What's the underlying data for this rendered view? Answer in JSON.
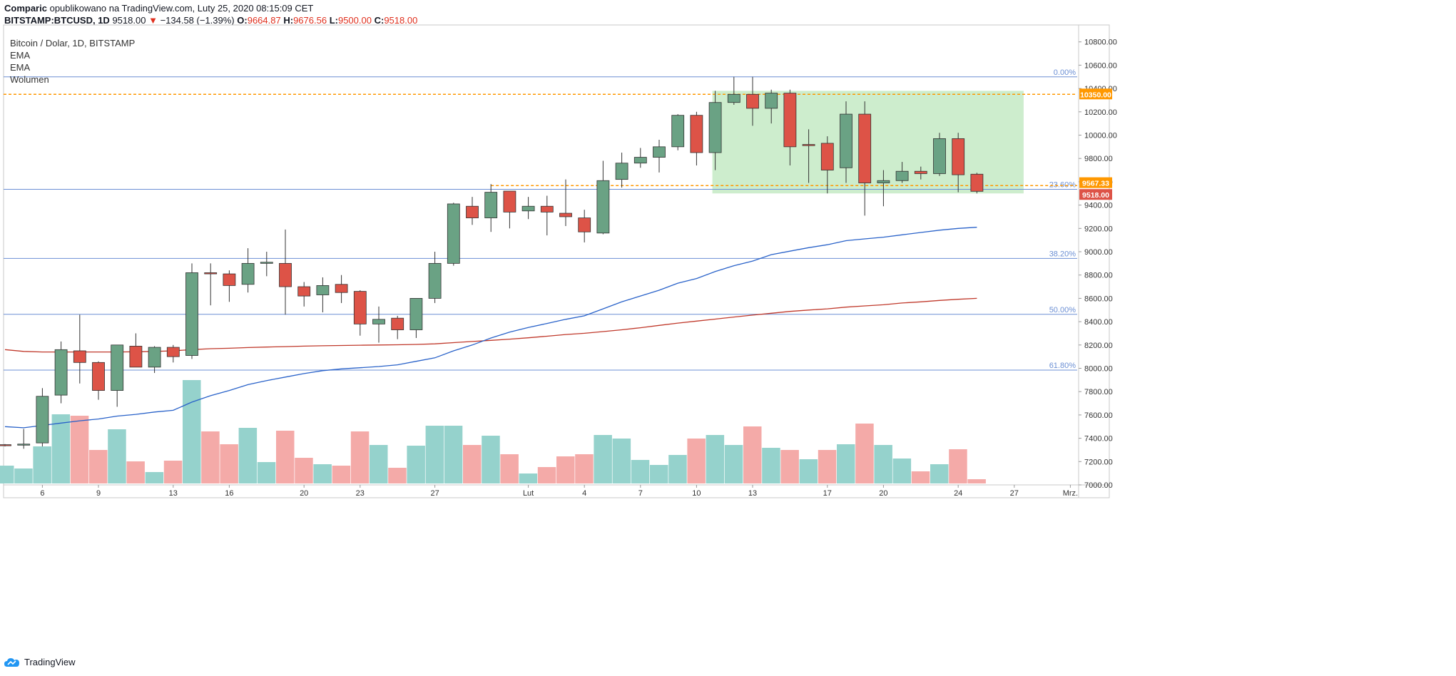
{
  "header": {
    "author": "Comparic",
    "published": "opublikowano na TradingView.com, Luty 25, 2020 08:15:09 CET",
    "symbol": "BITSTAMP:BTCUSD, 1D",
    "last": "9518.00",
    "change": "−134.58 (−1.39%)",
    "o_label": "O:",
    "o": "9664.87",
    "h_label": "H:",
    "h": "9676.56",
    "l_label": "L:",
    "l": "9500.00",
    "c_label": "C:",
    "c": "9518.00"
  },
  "legend": {
    "title": "Bitcoin / Dolar, 1D, BITSTAMP",
    "items": [
      "EMA",
      "EMA",
      "Wolumen"
    ]
  },
  "footer": {
    "brand": "TradingView"
  },
  "chart_data": {
    "type": "candlestick",
    "title": "Bitcoin / Dolar, 1D, BITSTAMP",
    "colors": {
      "up": "#6aa284",
      "down": "#dd5347",
      "vol_up": "#95d2cc",
      "vol_down": "#f4aaa8",
      "ema_short": "#2962c9",
      "ema_long": "#c0392b",
      "fib": "#6b8fd4",
      "orange": "#ff9800",
      "box": "#c8ebc8"
    },
    "ylim": [
      6900,
      10900
    ],
    "yticks": [
      7000,
      7200,
      7400,
      7600,
      7800,
      8000,
      8200,
      8400,
      8600,
      8800,
      9000,
      9200,
      9400,
      9600,
      9800,
      10000,
      10200,
      10400,
      10600,
      10800
    ],
    "ytick_labels": [
      "7000.00",
      "7200.00",
      "7400.00",
      "7600.00",
      "7800.00",
      "8000.00",
      "8200.00",
      "8400.00",
      "8600.00",
      "8800.00",
      "9000.00",
      "9200.00",
      "9400.00",
      "9600.00",
      "9800.00",
      "10000.00",
      "10200.00",
      "10400.00",
      "10600.00",
      "10800.00"
    ],
    "xticks": [
      {
        "index": 2,
        "label": "6"
      },
      {
        "index": 5,
        "label": "9"
      },
      {
        "index": 9,
        "label": "13"
      },
      {
        "index": 12,
        "label": "16"
      },
      {
        "index": 16,
        "label": "20"
      },
      {
        "index": 19,
        "label": "23"
      },
      {
        "index": 23,
        "label": "27"
      },
      {
        "index": 28,
        "label": "Lut"
      },
      {
        "index": 31,
        "label": "4"
      },
      {
        "index": 34,
        "label": "7"
      },
      {
        "index": 37,
        "label": "10"
      },
      {
        "index": 40,
        "label": "13"
      },
      {
        "index": 44,
        "label": "17"
      },
      {
        "index": 47,
        "label": "20"
      },
      {
        "index": 51,
        "label": "24"
      },
      {
        "index": 54,
        "label": "27"
      },
      {
        "index": 57,
        "label": "Mrz."
      }
    ],
    "candles": [
      {
        "o": 7345,
        "h": 7350,
        "l": 7330,
        "c": 7340
      },
      {
        "o": 7350,
        "h": 7480,
        "l": 7310,
        "c": 7350
      },
      {
        "o": 7360,
        "h": 7830,
        "l": 7330,
        "c": 7760
      },
      {
        "o": 7770,
        "h": 8230,
        "l": 7700,
        "c": 8160
      },
      {
        "o": 8150,
        "h": 8460,
        "l": 7870,
        "c": 8050
      },
      {
        "o": 8050,
        "h": 8060,
        "l": 7730,
        "c": 7810
      },
      {
        "o": 7810,
        "h": 8200,
        "l": 7670,
        "c": 8200
      },
      {
        "o": 8190,
        "h": 8300,
        "l": 8010,
        "c": 8010
      },
      {
        "o": 8010,
        "h": 8190,
        "l": 7960,
        "c": 8180
      },
      {
        "o": 8180,
        "h": 8200,
        "l": 8050,
        "c": 8100
      },
      {
        "o": 8110,
        "h": 8900,
        "l": 8080,
        "c": 8820
      },
      {
        "o": 8820,
        "h": 8900,
        "l": 8540,
        "c": 8810
      },
      {
        "o": 8810,
        "h": 8840,
        "l": 8570,
        "c": 8710
      },
      {
        "o": 8720,
        "h": 9030,
        "l": 8650,
        "c": 8900
      },
      {
        "o": 8900,
        "h": 9000,
        "l": 8790,
        "c": 8910
      },
      {
        "o": 8900,
        "h": 9190,
        "l": 8460,
        "c": 8700
      },
      {
        "o": 8700,
        "h": 8740,
        "l": 8530,
        "c": 8620
      },
      {
        "o": 8630,
        "h": 8780,
        "l": 8480,
        "c": 8710
      },
      {
        "o": 8720,
        "h": 8800,
        "l": 8560,
        "c": 8650
      },
      {
        "o": 8660,
        "h": 8670,
        "l": 8280,
        "c": 8380
      },
      {
        "o": 8380,
        "h": 8530,
        "l": 8220,
        "c": 8420
      },
      {
        "o": 8430,
        "h": 8450,
        "l": 8250,
        "c": 8330
      },
      {
        "o": 8330,
        "h": 8590,
        "l": 8260,
        "c": 8600
      },
      {
        "o": 8600,
        "h": 9000,
        "l": 8560,
        "c": 8900
      },
      {
        "o": 8900,
        "h": 9420,
        "l": 8880,
        "c": 9410
      },
      {
        "o": 9390,
        "h": 9470,
        "l": 9230,
        "c": 9290
      },
      {
        "o": 9290,
        "h": 9580,
        "l": 9170,
        "c": 9510
      },
      {
        "o": 9520,
        "h": 9520,
        "l": 9200,
        "c": 9340
      },
      {
        "o": 9350,
        "h": 9470,
        "l": 9280,
        "c": 9390
      },
      {
        "o": 9390,
        "h": 9480,
        "l": 9140,
        "c": 9340
      },
      {
        "o": 9330,
        "h": 9620,
        "l": 9220,
        "c": 9300
      },
      {
        "o": 9290,
        "h": 9360,
        "l": 9080,
        "c": 9170
      },
      {
        "o": 9160,
        "h": 9780,
        "l": 9150,
        "c": 9610
      },
      {
        "o": 9620,
        "h": 9850,
        "l": 9550,
        "c": 9760
      },
      {
        "o": 9760,
        "h": 9890,
        "l": 9720,
        "c": 9810
      },
      {
        "o": 9810,
        "h": 9960,
        "l": 9680,
        "c": 9900
      },
      {
        "o": 9900,
        "h": 10180,
        "l": 9870,
        "c": 10170
      },
      {
        "o": 10170,
        "h": 10200,
        "l": 9740,
        "c": 9850
      },
      {
        "o": 9850,
        "h": 10380,
        "l": 9700,
        "c": 10280
      },
      {
        "o": 10280,
        "h": 10500,
        "l": 10260,
        "c": 10350
      },
      {
        "o": 10350,
        "h": 10500,
        "l": 10080,
        "c": 10230
      },
      {
        "o": 10230,
        "h": 10390,
        "l": 10100,
        "c": 10360
      },
      {
        "o": 10360,
        "h": 10390,
        "l": 9740,
        "c": 9900
      },
      {
        "o": 9920,
        "h": 10050,
        "l": 9590,
        "c": 9910
      },
      {
        "o": 9930,
        "h": 9990,
        "l": 9500,
        "c": 9700
      },
      {
        "o": 9720,
        "h": 10290,
        "l": 9590,
        "c": 10180
      },
      {
        "o": 10180,
        "h": 10290,
        "l": 9310,
        "c": 9590
      },
      {
        "o": 9590,
        "h": 9700,
        "l": 9390,
        "c": 9610
      },
      {
        "o": 9610,
        "h": 9770,
        "l": 9590,
        "c": 9690
      },
      {
        "o": 9690,
        "h": 9730,
        "l": 9620,
        "c": 9670
      },
      {
        "o": 9670,
        "h": 10020,
        "l": 9650,
        "c": 9970
      },
      {
        "o": 9970,
        "h": 10020,
        "l": 9510,
        "c": 9660
      },
      {
        "o": 9665,
        "h": 9677,
        "l": 9500,
        "c": 9518
      }
    ],
    "volume": [
      {
        "v": 0.25,
        "up": true
      },
      {
        "v": 0.21,
        "up": true
      },
      {
        "v": 0.52,
        "up": true
      },
      {
        "v": 0.97,
        "up": true
      },
      {
        "v": 0.95,
        "up": false
      },
      {
        "v": 0.47,
        "up": false
      },
      {
        "v": 0.76,
        "up": true
      },
      {
        "v": 0.31,
        "up": false
      },
      {
        "v": 0.16,
        "up": true
      },
      {
        "v": 0.32,
        "up": false
      },
      {
        "v": 1.45,
        "up": true
      },
      {
        "v": 0.73,
        "up": false
      },
      {
        "v": 0.55,
        "up": false
      },
      {
        "v": 0.78,
        "up": true
      },
      {
        "v": 0.3,
        "up": true
      },
      {
        "v": 0.74,
        "up": false
      },
      {
        "v": 0.36,
        "up": false
      },
      {
        "v": 0.27,
        "up": true
      },
      {
        "v": 0.25,
        "up": false
      },
      {
        "v": 0.73,
        "up": false
      },
      {
        "v": 0.54,
        "up": true
      },
      {
        "v": 0.22,
        "up": false
      },
      {
        "v": 0.53,
        "up": true
      },
      {
        "v": 0.81,
        "up": true
      },
      {
        "v": 0.81,
        "up": true
      },
      {
        "v": 0.54,
        "up": false
      },
      {
        "v": 0.67,
        "up": true
      },
      {
        "v": 0.41,
        "up": false
      },
      {
        "v": 0.14,
        "up": true
      },
      {
        "v": 0.23,
        "up": false
      },
      {
        "v": 0.38,
        "up": false
      },
      {
        "v": 0.41,
        "up": false
      },
      {
        "v": 0.68,
        "up": true
      },
      {
        "v": 0.63,
        "up": true
      },
      {
        "v": 0.33,
        "up": true
      },
      {
        "v": 0.26,
        "up": true
      },
      {
        "v": 0.4,
        "up": true
      },
      {
        "v": 0.63,
        "up": false
      },
      {
        "v": 0.68,
        "up": true
      },
      {
        "v": 0.54,
        "up": true
      },
      {
        "v": 0.8,
        "up": false
      },
      {
        "v": 0.5,
        "up": true
      },
      {
        "v": 0.47,
        "up": false
      },
      {
        "v": 0.34,
        "up": true
      },
      {
        "v": 0.47,
        "up": false
      },
      {
        "v": 0.55,
        "up": true
      },
      {
        "v": 0.84,
        "up": false
      },
      {
        "v": 0.54,
        "up": true
      },
      {
        "v": 0.35,
        "up": true
      },
      {
        "v": 0.17,
        "up": false
      },
      {
        "v": 0.27,
        "up": true
      },
      {
        "v": 0.48,
        "up": false
      },
      {
        "v": 0.06,
        "up": false
      }
    ],
    "ema_short": [
      {
        "i": 0,
        "y": 7500
      },
      {
        "i": 1,
        "y": 7490
      },
      {
        "i": 2,
        "y": 7510
      },
      {
        "i": 3,
        "y": 7530
      },
      {
        "i": 4,
        "y": 7550
      },
      {
        "i": 5,
        "y": 7565
      },
      {
        "i": 6,
        "y": 7590
      },
      {
        "i": 7,
        "y": 7605
      },
      {
        "i": 8,
        "y": 7625
      },
      {
        "i": 9,
        "y": 7640
      },
      {
        "i": 10,
        "y": 7710
      },
      {
        "i": 11,
        "y": 7765
      },
      {
        "i": 12,
        "y": 7810
      },
      {
        "i": 13,
        "y": 7860
      },
      {
        "i": 14,
        "y": 7895
      },
      {
        "i": 15,
        "y": 7925
      },
      {
        "i": 16,
        "y": 7955
      },
      {
        "i": 17,
        "y": 7980
      },
      {
        "i": 18,
        "y": 7995
      },
      {
        "i": 19,
        "y": 8005
      },
      {
        "i": 20,
        "y": 8015
      },
      {
        "i": 21,
        "y": 8030
      },
      {
        "i": 22,
        "y": 8060
      },
      {
        "i": 23,
        "y": 8090
      },
      {
        "i": 24,
        "y": 8150
      },
      {
        "i": 25,
        "y": 8200
      },
      {
        "i": 26,
        "y": 8260
      },
      {
        "i": 27,
        "y": 8310
      },
      {
        "i": 28,
        "y": 8350
      },
      {
        "i": 29,
        "y": 8385
      },
      {
        "i": 30,
        "y": 8420
      },
      {
        "i": 31,
        "y": 8450
      },
      {
        "i": 32,
        "y": 8510
      },
      {
        "i": 33,
        "y": 8570
      },
      {
        "i": 34,
        "y": 8620
      },
      {
        "i": 35,
        "y": 8670
      },
      {
        "i": 36,
        "y": 8730
      },
      {
        "i": 37,
        "y": 8770
      },
      {
        "i": 38,
        "y": 8830
      },
      {
        "i": 39,
        "y": 8880
      },
      {
        "i": 40,
        "y": 8920
      },
      {
        "i": 41,
        "y": 8975
      },
      {
        "i": 42,
        "y": 9005
      },
      {
        "i": 43,
        "y": 9035
      },
      {
        "i": 44,
        "y": 9060
      },
      {
        "i": 45,
        "y": 9095
      },
      {
        "i": 46,
        "y": 9110
      },
      {
        "i": 47,
        "y": 9125
      },
      {
        "i": 48,
        "y": 9145
      },
      {
        "i": 49,
        "y": 9165
      },
      {
        "i": 50,
        "y": 9185
      },
      {
        "i": 51,
        "y": 9200
      },
      {
        "i": 52,
        "y": 9210
      }
    ],
    "ema_long": [
      {
        "i": 0,
        "y": 8160
      },
      {
        "i": 1,
        "y": 8145
      },
      {
        "i": 2,
        "y": 8140
      },
      {
        "i": 3,
        "y": 8140
      },
      {
        "i": 4,
        "y": 8140
      },
      {
        "i": 5,
        "y": 8140
      },
      {
        "i": 6,
        "y": 8140
      },
      {
        "i": 7,
        "y": 8142
      },
      {
        "i": 8,
        "y": 8145
      },
      {
        "i": 9,
        "y": 8150
      },
      {
        "i": 10,
        "y": 8160
      },
      {
        "i": 11,
        "y": 8168
      },
      {
        "i": 12,
        "y": 8172
      },
      {
        "i": 13,
        "y": 8178
      },
      {
        "i": 14,
        "y": 8182
      },
      {
        "i": 15,
        "y": 8186
      },
      {
        "i": 16,
        "y": 8190
      },
      {
        "i": 17,
        "y": 8193
      },
      {
        "i": 18,
        "y": 8196
      },
      {
        "i": 19,
        "y": 8198
      },
      {
        "i": 20,
        "y": 8200
      },
      {
        "i": 21,
        "y": 8202
      },
      {
        "i": 22,
        "y": 8205
      },
      {
        "i": 23,
        "y": 8210
      },
      {
        "i": 24,
        "y": 8220
      },
      {
        "i": 25,
        "y": 8230
      },
      {
        "i": 26,
        "y": 8240
      },
      {
        "i": 27,
        "y": 8250
      },
      {
        "i": 28,
        "y": 8262
      },
      {
        "i": 29,
        "y": 8275
      },
      {
        "i": 30,
        "y": 8290
      },
      {
        "i": 31,
        "y": 8300
      },
      {
        "i": 32,
        "y": 8315
      },
      {
        "i": 33,
        "y": 8330
      },
      {
        "i": 34,
        "y": 8348
      },
      {
        "i": 35,
        "y": 8368
      },
      {
        "i": 36,
        "y": 8388
      },
      {
        "i": 37,
        "y": 8405
      },
      {
        "i": 38,
        "y": 8422
      },
      {
        "i": 39,
        "y": 8440
      },
      {
        "i": 40,
        "y": 8456
      },
      {
        "i": 41,
        "y": 8472
      },
      {
        "i": 42,
        "y": 8488
      },
      {
        "i": 43,
        "y": 8500
      },
      {
        "i": 44,
        "y": 8510
      },
      {
        "i": 45,
        "y": 8525
      },
      {
        "i": 46,
        "y": 8535
      },
      {
        "i": 47,
        "y": 8545
      },
      {
        "i": 48,
        "y": 8560
      },
      {
        "i": 49,
        "y": 8570
      },
      {
        "i": 50,
        "y": 8582
      },
      {
        "i": 51,
        "y": 8592
      },
      {
        "i": 52,
        "y": 8600
      }
    ],
    "fib_levels": [
      {
        "value": 10500,
        "label": "0.00%"
      },
      {
        "value": 9535,
        "label": "23.60%"
      },
      {
        "value": 8943,
        "label": "38.20%"
      },
      {
        "value": 8463,
        "label": "50.00%"
      },
      {
        "value": 7985,
        "label": "61.80%"
      }
    ],
    "box": {
      "from_index": 38,
      "to_index": 54.5,
      "top": 10380,
      "bottom": 9500
    },
    "resistance": {
      "value": 10350,
      "label": "10350.00"
    },
    "support": {
      "value": 9567.33,
      "label": "9567.33",
      "from_index": 26
    },
    "last_price": {
      "value": 9518,
      "label": "9518.00"
    }
  }
}
